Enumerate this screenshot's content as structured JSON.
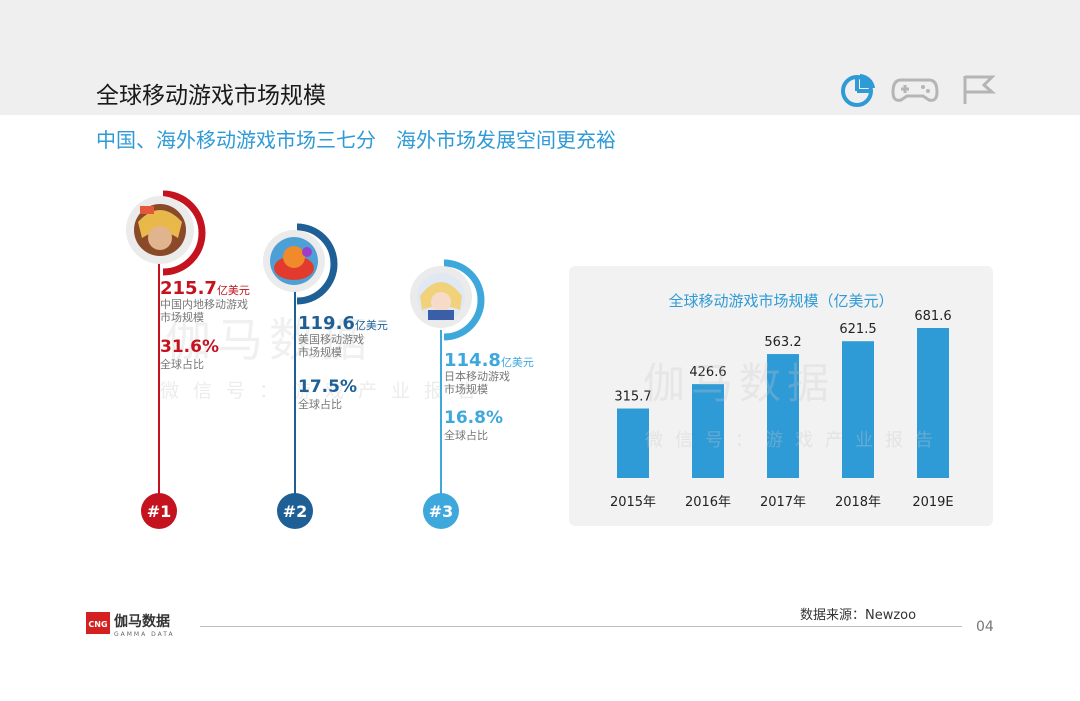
{
  "header": {
    "title": "全球移动游戏市场规模",
    "icons": [
      "pie-chart-icon",
      "gamepad-icon",
      "flag-icon"
    ]
  },
  "subtitle": "中国、海外移动游戏市场三七分　海外市场发展空间更充裕",
  "watermark": {
    "main": "伽马数据",
    "sub": "微信号：游戏产业报告"
  },
  "rankings": [
    {
      "rank": "#1",
      "value": "215.7",
      "unit": "亿美元",
      "desc1": "中国内地移动游戏",
      "desc2": "市场规模",
      "share": "31.6%",
      "share_label": "全球占比",
      "color": "#c4121e"
    },
    {
      "rank": "#2",
      "value": "119.6",
      "unit": "亿美元",
      "desc1": "美国移动游戏",
      "desc2": "市场规模",
      "share": "17.5%",
      "share_label": "全球占比",
      "color": "#1e5f96"
    },
    {
      "rank": "#3",
      "value": "114.8",
      "unit": "亿美元",
      "desc1": "日本移动游戏",
      "desc2": "市场规模",
      "share": "16.8%",
      "share_label": "全球占比",
      "color": "#3ea8dc"
    }
  ],
  "chart_data": {
    "type": "bar",
    "title": "全球移动游戏市场规模（亿美元）",
    "categories": [
      "2015年",
      "2016年",
      "2017年",
      "2018年",
      "2019E"
    ],
    "values": [
      315.7,
      426.6,
      563.2,
      621.5,
      681.6
    ],
    "value_labels": [
      "315.7",
      "426.6",
      "563.2",
      "621.5",
      "681.6"
    ],
    "xlabel": "",
    "ylabel": "",
    "ylim": [
      0,
      700
    ],
    "grid": false,
    "bar_color": "#2e9ad6"
  },
  "footer": {
    "logo_badge": "CNG",
    "logo_text": "伽马数据",
    "logo_sub": "GAMMA DATA",
    "source": "数据来源：Newzoo",
    "page": "04"
  }
}
